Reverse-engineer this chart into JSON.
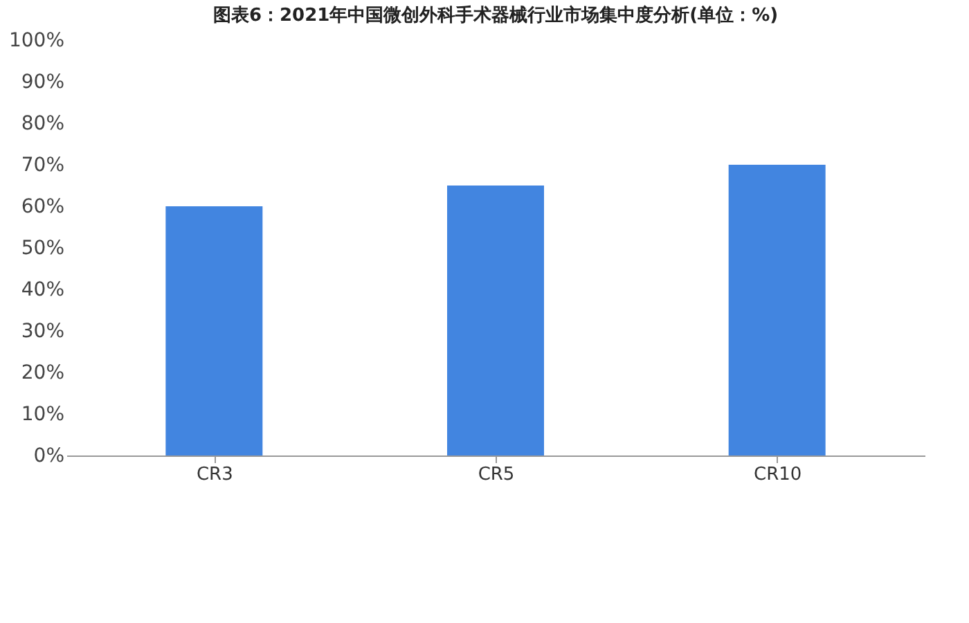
{
  "chart_data": {
    "type": "bar",
    "title": "图表6：2021年中国微创外科手术器械行业市场集中度分析(单位：%)",
    "categories": [
      "CR3",
      "CR5",
      "CR10"
    ],
    "values": [
      60,
      65,
      70
    ],
    "color": "#4285e0",
    "ylim": [
      0,
      100
    ],
    "yticks": [
      {
        "value": 0,
        "label": "0%"
      },
      {
        "value": 10,
        "label": "10%"
      },
      {
        "value": 20,
        "label": "20%"
      },
      {
        "value": 30,
        "label": "30%"
      },
      {
        "value": 40,
        "label": "40%"
      },
      {
        "value": 50,
        "label": "50%"
      },
      {
        "value": 60,
        "label": "60%"
      },
      {
        "value": 70,
        "label": "70%"
      },
      {
        "value": 80,
        "label": "80%"
      },
      {
        "value": 90,
        "label": "90%"
      },
      {
        "value": 100,
        "label": "100%"
      }
    ],
    "grid": false
  }
}
